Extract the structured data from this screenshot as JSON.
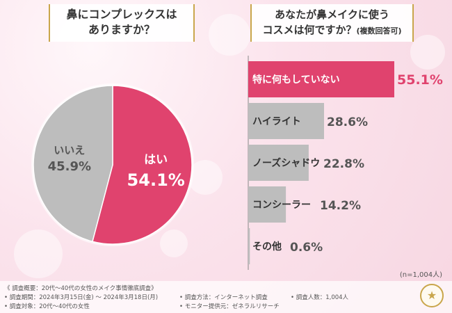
{
  "colors": {
    "accent": "#e0436e",
    "gray": "#bdbdbd",
    "gold": "#c9a64b"
  },
  "left_question": {
    "line1": "鼻にコンプレックスは",
    "line2": "ありますか？"
  },
  "right_question": {
    "line1": "あなたが鼻メイクに使う",
    "line2": "コスメは何ですか？",
    "line2_small": "(複数回答可)"
  },
  "chart_data": [
    {
      "type": "pie",
      "slices": [
        {
          "label": "はい",
          "value": 54.1,
          "display": "54.1%",
          "color": "#e0436e"
        },
        {
          "label": "いいえ",
          "value": 45.9,
          "display": "45.9%",
          "color": "#bdbdbd"
        }
      ]
    },
    {
      "type": "bar",
      "orientation": "horizontal",
      "categories": [
        "特に何もしていない",
        "ハイライト",
        "ノーズシャドウ",
        "コンシーラー",
        "その他"
      ],
      "values": [
        55.1,
        28.6,
        22.8,
        14.2,
        0.6
      ],
      "value_labels": [
        "55.1%",
        "28.6%",
        "22.8%",
        "14.2%",
        "0.6%"
      ],
      "highlight_index": 0
    }
  ],
  "sample_note": "(n=1,004人)",
  "footer": {
    "overview": "《 調査概要：20代〜40代の女性のメイク事情徹底調査》",
    "period": "• 調査期間：2024年3月15日(金) 〜 2024年3月18日(月)",
    "target": "• 調査対象：20代〜40代の女性",
    "method": "• 調査方法：インターネット調査",
    "provider": "• モニター提供元：ゼネラルリサーチ",
    "count": "• 調査人数：1,004人"
  }
}
